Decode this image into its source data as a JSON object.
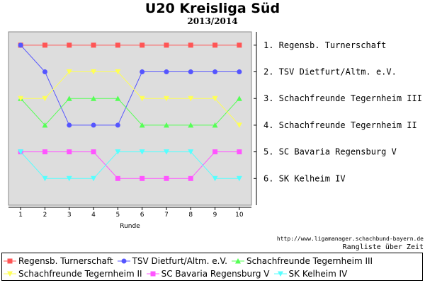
{
  "title": "U20 Kreisliga Süd",
  "subtitle": "2013/2014",
  "source": "http://www.ligamanager.schachbund-bayern.de",
  "caption": "Rangliste über Zeit",
  "chart_data": {
    "type": "line",
    "xlabel": "Runde",
    "ylabel": "",
    "x": [
      1,
      2,
      3,
      4,
      5,
      6,
      7,
      8,
      9,
      10
    ],
    "xlim": [
      0.5,
      10.5
    ],
    "ylim": [
      0.5,
      7.0
    ],
    "y_inverted": true,
    "grid": false,
    "legend_position": "bottom",
    "plot_background": "#dddddd",
    "rank_labels": [
      "1.  Regensb. Turnerschaft",
      "2.  TSV Dietfurt/Altm. e.V.",
      "3.  Schachfreunde Tegernheim III",
      "4.  Schachfreunde Tegernheim II",
      "5.  SC Bavaria Regensburg V",
      "6.  SK Kelheim IV"
    ],
    "series": [
      {
        "name": "Regensb. Turnerschaft",
        "color": "#ff5555",
        "marker": "square",
        "values": [
          1,
          1,
          1,
          1,
          1,
          1,
          1,
          1,
          1,
          1
        ]
      },
      {
        "name": "TSV Dietfurt/Altm. e.V.",
        "color": "#5555ff",
        "marker": "circle",
        "values": [
          1,
          2,
          4,
          4,
          4,
          2,
          2,
          2,
          2,
          2
        ]
      },
      {
        "name": "Schachfreunde Tegernheim III",
        "color": "#55ff55",
        "marker": "triangle-up",
        "values": [
          3,
          4,
          3,
          3,
          3,
          4,
          4,
          4,
          4,
          3
        ]
      },
      {
        "name": "Schachfreunde Tegernheim II",
        "color": "#ffff55",
        "marker": "triangle-down",
        "values": [
          3,
          3,
          2,
          2,
          2,
          3,
          3,
          3,
          3,
          4
        ]
      },
      {
        "name": "SC Bavaria Regensburg V",
        "color": "#ff55ff",
        "marker": "square",
        "values": [
          5,
          5,
          5,
          5,
          6,
          6,
          6,
          6,
          5,
          5
        ]
      },
      {
        "name": "SK Kelheim IV",
        "color": "#55ffff",
        "marker": "triangle-down",
        "values": [
          5,
          6,
          6,
          6,
          5,
          5,
          5,
          5,
          6,
          6
        ]
      }
    ]
  }
}
